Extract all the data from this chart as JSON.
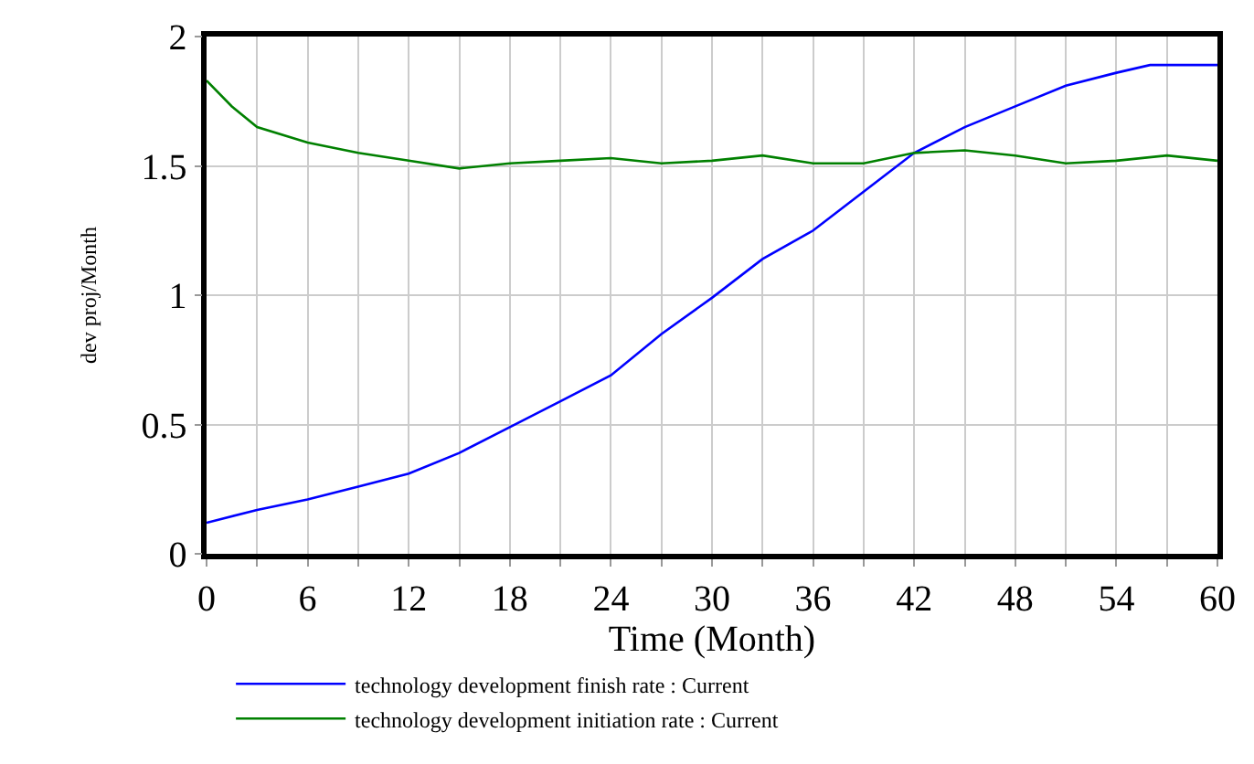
{
  "chart_data": {
    "type": "line",
    "xlabel": "Time (Month)",
    "ylabel": "dev proj/Month",
    "xlim": [
      0,
      60
    ],
    "ylim": [
      0,
      2
    ],
    "xticks": [
      0,
      {
        "value": 3,
        "label": null
      },
      6,
      {
        "value": 9,
        "label": null
      },
      12,
      {
        "value": 15,
        "label": null
      },
      18,
      {
        "value": 21,
        "label": null
      },
      24,
      {
        "value": 27,
        "label": null
      },
      30,
      {
        "value": 33,
        "label": null
      },
      36,
      {
        "value": 39,
        "label": null
      },
      42,
      {
        "value": 45,
        "label": null
      },
      48,
      {
        "value": 51,
        "label": null
      },
      54,
      {
        "value": 57,
        "label": null
      },
      60
    ],
    "yticks": [
      0,
      0.5,
      1,
      1.5,
      2
    ],
    "grid": true,
    "legend": "bottom",
    "marker": "none",
    "line_style": "solid",
    "series": [
      {
        "name": "technology development finish rate : Current",
        "color": "#0000ff",
        "x": [
          0,
          3,
          6,
          9,
          12,
          15,
          18,
          21,
          24,
          27,
          30,
          33,
          36,
          39,
          42,
          45,
          48,
          51,
          54,
          56,
          60
        ],
        "values": [
          0.12,
          0.17,
          0.21,
          0.26,
          0.31,
          0.39,
          0.49,
          0.59,
          0.69,
          0.85,
          0.99,
          1.14,
          1.25,
          1.4,
          1.55,
          1.65,
          1.73,
          1.81,
          1.86,
          1.89,
          1.89
        ]
      },
      {
        "name": "technology development initiation rate : Current",
        "color": "#008000",
        "x": [
          0,
          1.5,
          3,
          6,
          9,
          12,
          15,
          18,
          21,
          24,
          27,
          30,
          33,
          36,
          39,
          42,
          45,
          48,
          51,
          54,
          57,
          60
        ],
        "values": [
          1.83,
          1.73,
          1.65,
          1.59,
          1.55,
          1.52,
          1.49,
          1.51,
          1.52,
          1.53,
          1.51,
          1.52,
          1.54,
          1.51,
          1.51,
          1.55,
          1.56,
          1.54,
          1.51,
          1.52,
          1.54,
          1.52
        ]
      }
    ]
  }
}
